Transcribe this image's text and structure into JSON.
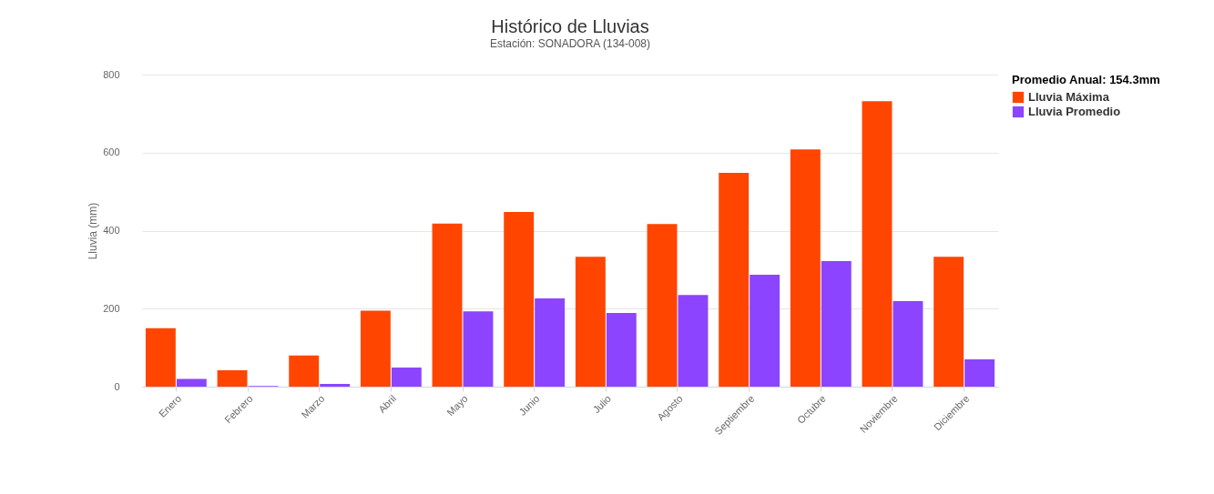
{
  "chart_data": {
    "type": "bar",
    "title": "Histórico de Lluvias",
    "subtitle": "Estación: SONADORA (134-008)",
    "ylabel": "Lluvia (mm)",
    "legend_title": "Promedio Anual: 154.3mm",
    "categories": [
      "Enero",
      "Febrero",
      "Marzo",
      "Abril",
      "Mayo",
      "Junio",
      "Julio",
      "Agosto",
      "Septiembre",
      "Octubre",
      "Noviembre",
      "Diciembre"
    ],
    "series": [
      {
        "name": "Lluvia Máxima",
        "color": "#ff4500",
        "values": [
          150,
          42,
          80,
          195,
          418,
          448,
          333,
          417,
          548,
          608,
          732,
          333
        ]
      },
      {
        "name": "Lluvia Promedio",
        "color": "#8c44ff",
        "values": [
          20,
          2,
          7,
          49,
          193,
          226,
          189,
          235,
          287,
          322,
          219,
          70
        ]
      }
    ],
    "ylim": [
      0,
      800
    ],
    "yticks": [
      0,
      200,
      400,
      600,
      800
    ],
    "grid": "y",
    "legend": "right"
  }
}
